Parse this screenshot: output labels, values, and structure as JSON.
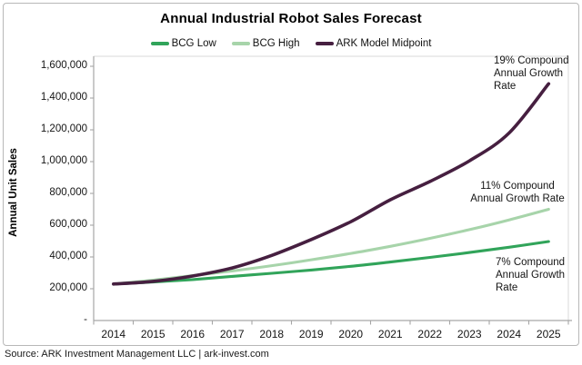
{
  "source": "Source: ARK Investment Management LLC | ark-invest.com",
  "chart_data": {
    "type": "line",
    "title": "Annual Industrial Robot Sales Forecast",
    "xlabel": "",
    "ylabel": "Annual Unit Sales",
    "x": [
      2014,
      2015,
      2016,
      2017,
      2018,
      2019,
      2020,
      2021,
      2022,
      2023,
      2024,
      2025
    ],
    "ylim": [
      0,
      1600000
    ],
    "y_tick_interval": 200000,
    "y_tick_labels": [
      "1,600,000",
      "1,400,000",
      "1,200,000",
      "1,000,000",
      "800,000",
      "600,000",
      "400,000",
      "200,000",
      "-"
    ],
    "grid": false,
    "legend_position": "top",
    "series": [
      {
        "name": "BCG Low",
        "color": "#31A45A",
        "values": [
          230000,
          242000,
          258000,
          278000,
          297000,
          318000,
          341000,
          368000,
          397000,
          428000,
          461000,
          497000
        ]
      },
      {
        "name": "BCG High",
        "color": "#A7D4AA",
        "values": [
          230000,
          254000,
          282000,
          312000,
          345000,
          382000,
          422000,
          467000,
          517000,
          572000,
          633000,
          700000
        ]
      },
      {
        "name": "ARK Model Midpoint",
        "color": "#461F40",
        "values": [
          230000,
          246000,
          280000,
          331000,
          410000,
          510000,
          622000,
          760000,
          875000,
          1005000,
          1180000,
          1490000
        ]
      }
    ],
    "annotations": [
      {
        "target_series": "ARK Model Midpoint",
        "lines": [
          "19% Compound",
          "Annual Growth",
          "Rate"
        ]
      },
      {
        "target_series": "BCG High",
        "lines": [
          "11% Compound",
          "Annual Growth Rate"
        ]
      },
      {
        "target_series": "BCG Low",
        "lines": [
          "7% Compound",
          "Annual Growth",
          "Rate"
        ]
      }
    ],
    "axis_color": "#A6A6A6",
    "plot_border_color": "#DADADA",
    "text_color": "#141414"
  }
}
